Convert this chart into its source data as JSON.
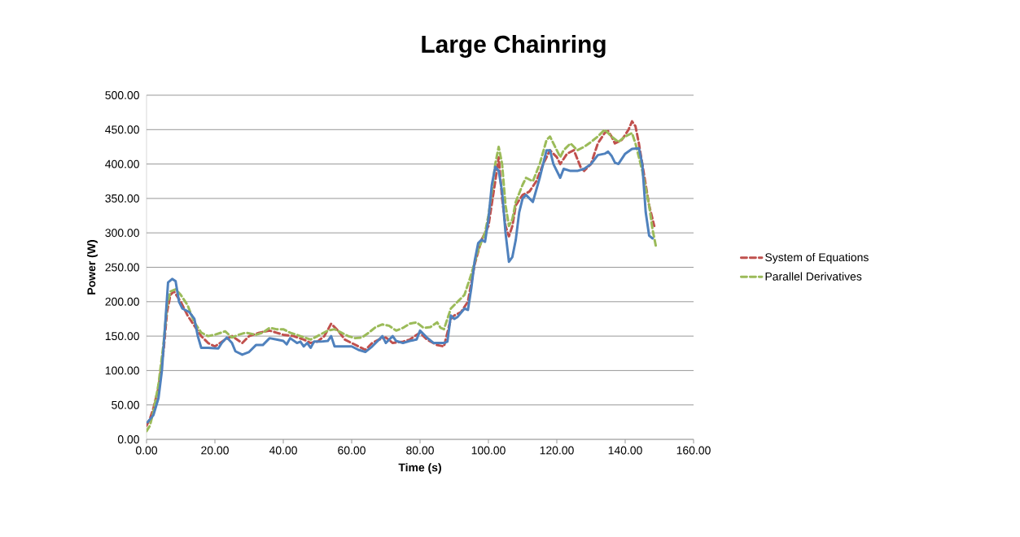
{
  "chart_data": {
    "type": "line",
    "title": "Large Chainring",
    "xlabel": "Time (s)",
    "ylabel": "Power (W)",
    "xlim": [
      0,
      160
    ],
    "ylim": [
      0,
      500
    ],
    "xticks": [
      {
        "value": 0,
        "label": "0.00"
      },
      {
        "value": 20,
        "label": "20.00"
      },
      {
        "value": 40,
        "label": "40.00"
      },
      {
        "value": 60,
        "label": "60.00"
      },
      {
        "value": 80,
        "label": "80.00"
      },
      {
        "value": 100,
        "label": "100.00"
      },
      {
        "value": 120,
        "label": "120.00"
      },
      {
        "value": 140,
        "label": "140.00"
      },
      {
        "value": 160,
        "label": "160.00"
      }
    ],
    "yticks": [
      {
        "value": 0,
        "label": "0.00"
      },
      {
        "value": 50,
        "label": "50.00"
      },
      {
        "value": 100,
        "label": "100.00"
      },
      {
        "value": 150,
        "label": "150.00"
      },
      {
        "value": 200,
        "label": "200.00"
      },
      {
        "value": 250,
        "label": "250.00"
      },
      {
        "value": 300,
        "label": "300.00"
      },
      {
        "value": 350,
        "label": "350.00"
      },
      {
        "value": 400,
        "label": "400.00"
      },
      {
        "value": 450,
        "label": "450.00"
      },
      {
        "value": 500,
        "label": "500.00"
      }
    ],
    "grid": "y",
    "legend": "right",
    "marker": "none",
    "series": [
      {
        "name": "System of Equations",
        "color": "#c0504d",
        "line_style": "dashed",
        "x": [
          0,
          1,
          2,
          3.5,
          5,
          6,
          7,
          8,
          10,
          12,
          14,
          16,
          18,
          20,
          23,
          25,
          28,
          30,
          33,
          36,
          38,
          40,
          43,
          46,
          48,
          50,
          52,
          54,
          56,
          58,
          60,
          62,
          64,
          66,
          68,
          70,
          72,
          75,
          77,
          80,
          82,
          85,
          87,
          89,
          90,
          92,
          94,
          96,
          98,
          100,
          102,
          103,
          104,
          105,
          106,
          107,
          108,
          110,
          112,
          114,
          116,
          118,
          120,
          121,
          123,
          125,
          127,
          128,
          130,
          132,
          134,
          135,
          136,
          137,
          139,
          141,
          142,
          143,
          144,
          146,
          147,
          148.5
        ],
        "values": [
          20,
          30,
          45,
          75,
          130,
          185,
          210,
          215,
          200,
          180,
          165,
          150,
          140,
          135,
          145,
          150,
          140,
          150,
          155,
          158,
          155,
          152,
          150,
          145,
          140,
          142,
          150,
          168,
          158,
          145,
          140,
          135,
          130,
          140,
          145,
          148,
          140,
          142,
          145,
          155,
          145,
          137,
          135,
          175,
          180,
          185,
          200,
          255,
          290,
          310,
          375,
          410,
          350,
          310,
          295,
          310,
          340,
          355,
          360,
          375,
          400,
          420,
          410,
          400,
          415,
          420,
          395,
          390,
          400,
          430,
          445,
          448,
          440,
          430,
          435,
          450,
          462,
          455,
          430,
          370,
          340,
          310
        ]
      },
      {
        "name": "Parallel Derivatives",
        "color": "#9bbb59",
        "line_style": "dashed",
        "x": [
          0,
          1,
          2,
          3.5,
          5,
          6,
          7,
          8.5,
          10,
          12,
          14,
          16,
          18,
          20,
          23,
          25,
          27,
          29,
          32,
          34,
          36,
          38,
          40,
          42,
          45,
          48,
          50,
          53,
          55,
          57,
          59,
          61,
          63,
          65,
          67,
          69,
          71,
          73,
          75,
          77,
          79,
          81,
          83,
          85,
          86,
          87,
          88,
          89,
          91,
          93,
          95,
          97,
          99,
          100,
          101,
          102,
          103,
          104,
          105,
          106,
          107,
          108,
          110,
          111,
          113,
          115,
          117,
          118,
          120,
          121,
          122,
          124,
          126,
          128,
          130,
          132,
          134,
          136,
          138,
          140,
          142,
          143,
          145,
          147,
          148,
          149
        ],
        "values": [
          12,
          20,
          40,
          80,
          140,
          195,
          215,
          218,
          210,
          195,
          170,
          155,
          150,
          152,
          157,
          148,
          152,
          155,
          152,
          155,
          162,
          160,
          160,
          155,
          150,
          145,
          150,
          158,
          160,
          155,
          150,
          147,
          148,
          155,
          163,
          167,
          165,
          158,
          162,
          168,
          170,
          162,
          163,
          170,
          162,
          160,
          175,
          190,
          200,
          210,
          240,
          275,
          300,
          325,
          360,
          400,
          425,
          400,
          340,
          310,
          320,
          345,
          370,
          380,
          375,
          400,
          435,
          440,
          420,
          410,
          420,
          430,
          420,
          425,
          432,
          440,
          450,
          440,
          432,
          440,
          445,
          430,
          390,
          340,
          305,
          280
        ]
      },
      {
        "color": "#4f81bd",
        "line_style": "solid",
        "x": [
          0.3,
          2,
          3.5,
          4.5,
          5.5,
          6.3,
          7.5,
          8.5,
          9.5,
          10.5,
          12.5,
          14,
          15,
          16,
          18,
          21,
          22,
          23.5,
          25,
          26,
          28,
          30,
          32,
          34,
          36,
          38,
          40,
          41,
          42,
          44,
          45,
          46,
          47,
          48,
          49,
          51,
          53,
          54,
          55,
          58,
          60,
          62,
          64,
          66,
          69,
          70,
          72,
          73,
          75,
          77,
          79,
          80,
          82,
          84,
          87,
          88,
          89,
          90,
          91,
          93,
          94,
          95,
          96,
          97,
          98,
          99,
          100,
          101,
          102,
          103,
          104,
          105,
          106,
          107,
          108,
          109,
          110,
          111,
          112,
          113,
          115,
          117,
          118,
          119,
          121,
          122,
          124,
          126,
          128,
          130,
          132,
          134,
          135,
          136,
          137,
          138,
          140,
          142,
          144,
          145,
          146,
          147,
          148
        ],
        "values": [
          25,
          35,
          60,
          100,
          170,
          228,
          233,
          230,
          200,
          190,
          185,
          175,
          150,
          133,
          133,
          132,
          140,
          148,
          140,
          128,
          123,
          127,
          137,
          137,
          147,
          145,
          143,
          138,
          147,
          140,
          142,
          135,
          140,
          133,
          142,
          142,
          143,
          150,
          135,
          135,
          135,
          130,
          127,
          135,
          150,
          140,
          150,
          143,
          140,
          143,
          145,
          158,
          148,
          140,
          140,
          142,
          180,
          175,
          178,
          190,
          188,
          220,
          260,
          285,
          290,
          287,
          320,
          370,
          396,
          390,
          360,
          300,
          258,
          265,
          290,
          330,
          350,
          355,
          350,
          345,
          380,
          420,
          420,
          400,
          380,
          393,
          390,
          390,
          393,
          400,
          413,
          415,
          418,
          412,
          402,
          400,
          415,
          422,
          423,
          400,
          330,
          296,
          292
        ]
      }
    ]
  }
}
